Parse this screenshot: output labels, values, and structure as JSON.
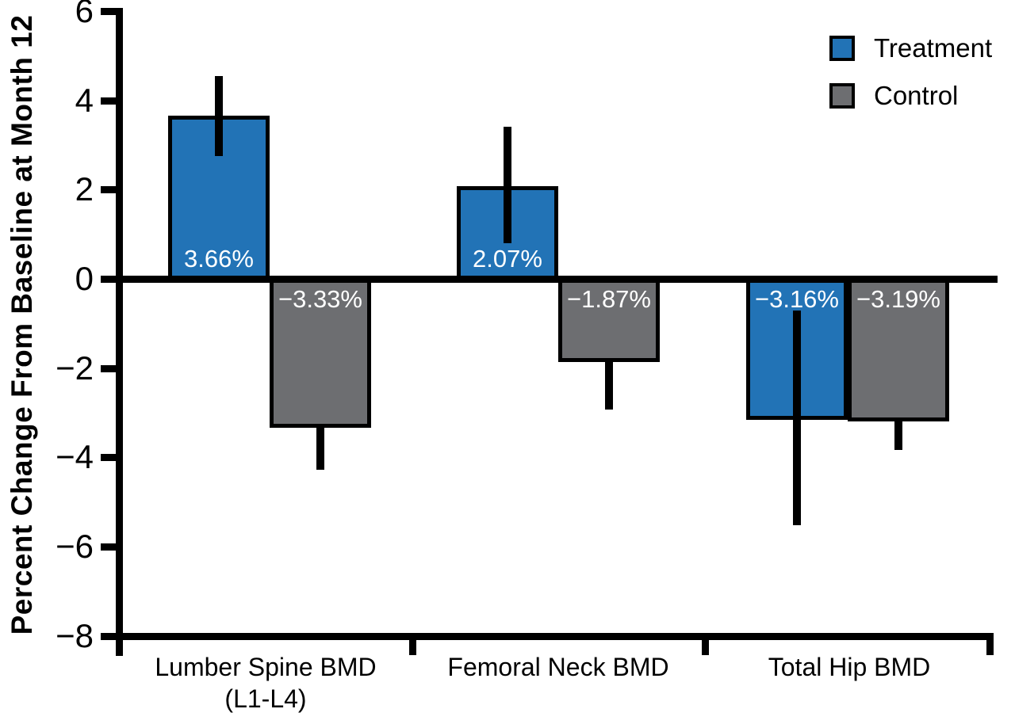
{
  "chart_data": {
    "type": "bar",
    "ylabel": "Percent Change From Baseline at Month 12",
    "xlabel": "",
    "ylim": [
      -8,
      6
    ],
    "yticks": [
      6,
      4,
      2,
      0,
      -2,
      -4,
      -6,
      -8
    ],
    "ytick_labels": [
      "6",
      "4",
      "2",
      "0",
      "−2",
      "−4",
      "−6",
      "−8"
    ],
    "grid": false,
    "legend_position": "top-right",
    "categories": [
      "Lumber Spine BMD\n(L1-L4)",
      "Femoral Neck BMD",
      "Total Hip BMD"
    ],
    "series": [
      {
        "name": "Treatment",
        "color": "#2273b6",
        "values": [
          3.66,
          2.07,
          -3.16
        ],
        "value_labels": [
          "3.66%",
          "2.07%",
          "−3.16%"
        ],
        "error_whiskers": [
          [
            2.75,
            4.55
          ],
          [
            0.8,
            3.41
          ],
          [
            -5.51,
            -0.71
          ]
        ]
      },
      {
        "name": "Control",
        "color": "#6d6e71",
        "values": [
          -3.33,
          -1.87,
          -3.19
        ],
        "value_labels": [
          "−3.33%",
          "−1.87%",
          "−3.19%"
        ],
        "error_whiskers": [
          [
            -4.28,
            -3.33
          ],
          [
            -2.93,
            -1.87
          ],
          [
            -3.84,
            -3.19
          ]
        ]
      }
    ],
    "colors": {
      "axis": "#000000",
      "treatment": "#2273b6",
      "control": "#6d6e71",
      "value_label_text": "#ffffff",
      "background": "#ffffff"
    }
  },
  "legend": {
    "items": [
      {
        "label": "Treatment",
        "color": "#2273b6"
      },
      {
        "label": "Control",
        "color": "#6d6e71"
      }
    ]
  }
}
